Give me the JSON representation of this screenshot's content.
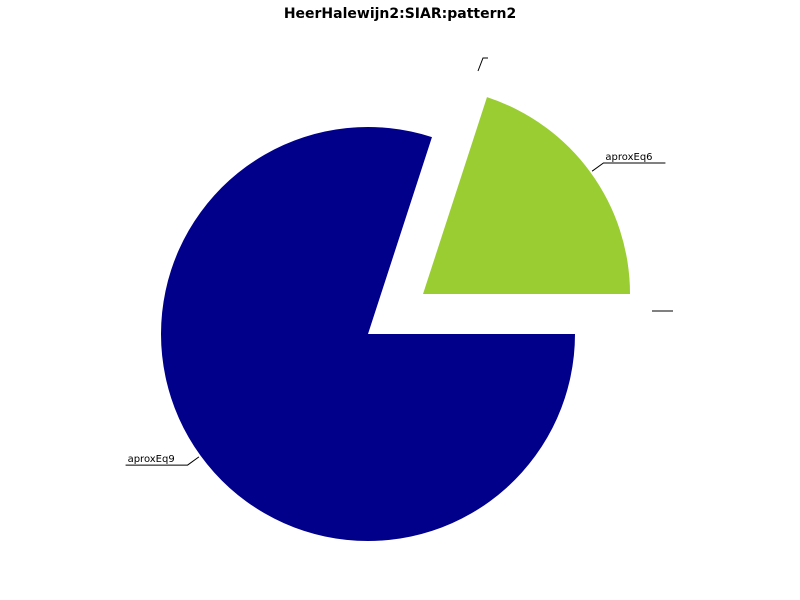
{
  "chart_data": {
    "type": "pie",
    "title": "HeerHalewijn2:SIAR:pattern2",
    "slices": [
      {
        "label": "aproxEq9",
        "value": 80,
        "color": "#00008b",
        "exploded": false
      },
      {
        "label": "aproxEq6",
        "value": 20,
        "color": "#9acd32",
        "exploded": true
      },
      {
        "label": "",
        "value": 0,
        "color": "#000000",
        "exploded": false
      },
      {
        "label": "",
        "value": 0,
        "color": "#000000",
        "exploded": false
      }
    ]
  }
}
